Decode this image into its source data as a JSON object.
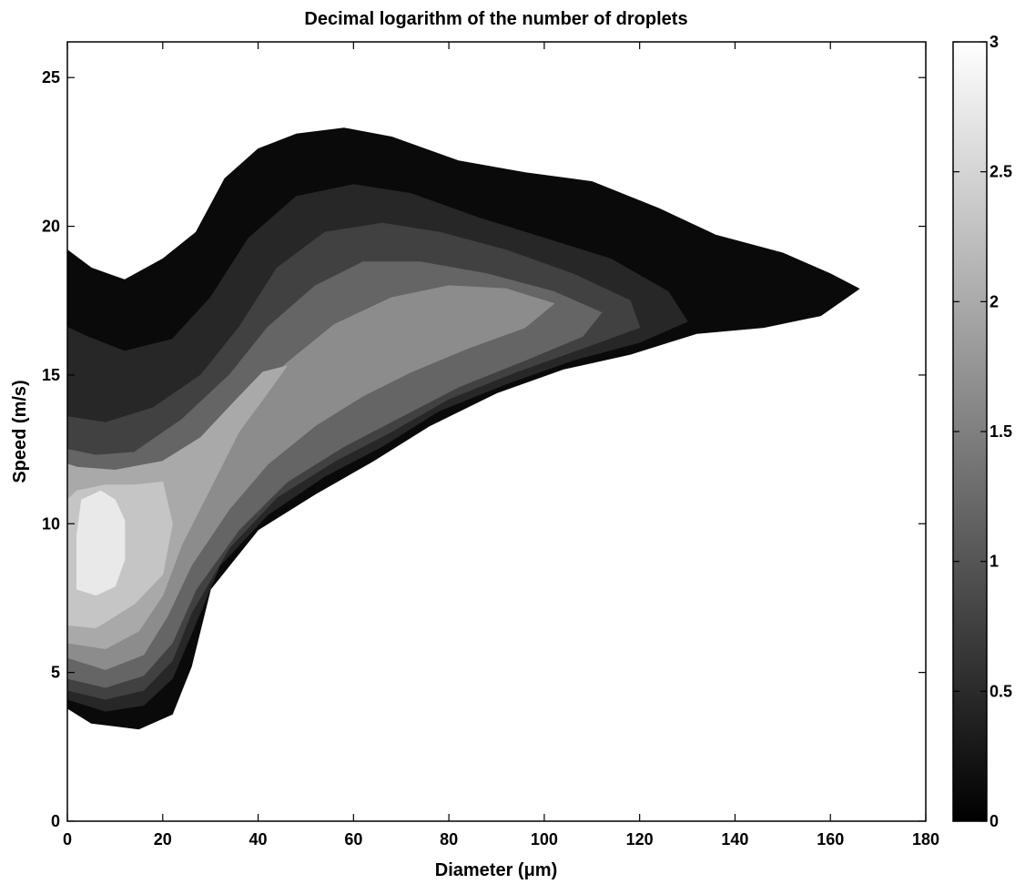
{
  "chart_data": {
    "type": "heatmap",
    "title": "Decimal logarithm of the number of droplets",
    "xlabel": "Diameter (μm)",
    "ylabel": "Speed (m/s)",
    "xlim": [
      0,
      180
    ],
    "ylim": [
      0,
      26.2
    ],
    "xticks": [
      "0",
      "20",
      "40",
      "60",
      "80",
      "100",
      "120",
      "140",
      "160",
      "180"
    ],
    "yticks": [
      "0",
      "5",
      "10",
      "15",
      "20",
      "25"
    ],
    "colormap": "gray",
    "colorbar": {
      "range": [
        0,
        3
      ],
      "ticks": [
        "0",
        "0.5",
        "1",
        "1.5",
        "2",
        "2.5",
        "3"
      ]
    },
    "contour_levels": [
      {
        "level": 0.0,
        "color": "#0a0a0a",
        "polygon": [
          [
            0,
            3.8
          ],
          [
            5,
            3.3
          ],
          [
            15,
            3.1
          ],
          [
            22,
            3.6
          ],
          [
            26,
            5.2
          ],
          [
            30,
            7.8
          ],
          [
            40,
            9.8
          ],
          [
            52,
            11.0
          ],
          [
            64,
            12.1
          ],
          [
            76,
            13.3
          ],
          [
            90,
            14.4
          ],
          [
            104,
            15.2
          ],
          [
            118,
            15.7
          ],
          [
            132,
            16.4
          ],
          [
            146,
            16.6
          ],
          [
            158,
            17.0
          ],
          [
            166,
            17.9
          ],
          [
            160,
            18.4
          ],
          [
            150,
            19.1
          ],
          [
            136,
            19.7
          ],
          [
            124,
            20.6
          ],
          [
            110,
            21.5
          ],
          [
            96,
            21.8
          ],
          [
            82,
            22.2
          ],
          [
            68,
            23.0
          ],
          [
            58,
            23.3
          ],
          [
            48,
            23.1
          ],
          [
            40,
            22.6
          ],
          [
            33,
            21.6
          ],
          [
            27,
            19.8
          ],
          [
            20,
            18.9
          ],
          [
            12,
            18.2
          ],
          [
            5,
            18.6
          ],
          [
            0,
            19.2
          ]
        ]
      },
      {
        "level": 0.5,
        "color": "#272727",
        "polygon": [
          [
            0,
            4.1
          ],
          [
            8,
            3.7
          ],
          [
            16,
            3.9
          ],
          [
            22,
            4.8
          ],
          [
            26,
            6.3
          ],
          [
            32,
            8.6
          ],
          [
            42,
            10.3
          ],
          [
            54,
            11.6
          ],
          [
            66,
            12.6
          ],
          [
            78,
            13.8
          ],
          [
            92,
            14.7
          ],
          [
            106,
            15.5
          ],
          [
            120,
            16.1
          ],
          [
            130,
            16.8
          ],
          [
            126,
            17.8
          ],
          [
            114,
            18.9
          ],
          [
            100,
            19.6
          ],
          [
            86,
            20.3
          ],
          [
            72,
            21.1
          ],
          [
            60,
            21.4
          ],
          [
            48,
            21.0
          ],
          [
            38,
            19.6
          ],
          [
            30,
            17.6
          ],
          [
            22,
            16.2
          ],
          [
            12,
            15.8
          ],
          [
            4,
            16.3
          ],
          [
            0,
            16.6
          ]
        ]
      },
      {
        "level": 0.75,
        "color": "#414141",
        "polygon": [
          [
            0,
            4.4
          ],
          [
            8,
            4.1
          ],
          [
            16,
            4.4
          ],
          [
            22,
            5.4
          ],
          [
            26,
            7.0
          ],
          [
            34,
            9.2
          ],
          [
            44,
            10.9
          ],
          [
            56,
            12.1
          ],
          [
            68,
            13.1
          ],
          [
            80,
            14.2
          ],
          [
            94,
            15.1
          ],
          [
            108,
            15.9
          ],
          [
            120,
            16.6
          ],
          [
            118,
            17.5
          ],
          [
            106,
            18.4
          ],
          [
            92,
            19.2
          ],
          [
            78,
            19.8
          ],
          [
            66,
            20.1
          ],
          [
            54,
            19.8
          ],
          [
            44,
            18.6
          ],
          [
            36,
            16.6
          ],
          [
            28,
            15.0
          ],
          [
            18,
            13.9
          ],
          [
            8,
            13.4
          ],
          [
            0,
            13.6
          ]
        ]
      },
      {
        "level": 1.25,
        "color": "#656565",
        "polygon": [
          [
            0,
            4.8
          ],
          [
            8,
            4.5
          ],
          [
            16,
            4.9
          ],
          [
            22,
            6.0
          ],
          [
            27,
            7.8
          ],
          [
            36,
            9.8
          ],
          [
            46,
            11.4
          ],
          [
            58,
            12.6
          ],
          [
            70,
            13.6
          ],
          [
            82,
            14.6
          ],
          [
            96,
            15.5
          ],
          [
            108,
            16.3
          ],
          [
            112,
            17.1
          ],
          [
            102,
            17.8
          ],
          [
            88,
            18.4
          ],
          [
            74,
            18.8
          ],
          [
            62,
            18.8
          ],
          [
            52,
            18.0
          ],
          [
            42,
            16.6
          ],
          [
            34,
            15.0
          ],
          [
            24,
            13.5
          ],
          [
            14,
            12.4
          ],
          [
            6,
            12.3
          ],
          [
            0,
            12.5
          ]
        ]
      },
      {
        "level": 1.75,
        "color": "#8c8c8c",
        "polygon": [
          [
            0,
            5.5
          ],
          [
            8,
            5.1
          ],
          [
            16,
            5.6
          ],
          [
            21,
            6.9
          ],
          [
            26,
            8.6
          ],
          [
            34,
            10.5
          ],
          [
            42,
            12.0
          ],
          [
            52,
            13.3
          ],
          [
            62,
            14.3
          ],
          [
            72,
            15.1
          ],
          [
            84,
            15.9
          ],
          [
            96,
            16.6
          ],
          [
            102,
            17.4
          ],
          [
            92,
            17.9
          ],
          [
            80,
            18.0
          ],
          [
            68,
            17.6
          ],
          [
            56,
            16.7
          ],
          [
            46,
            15.4
          ],
          [
            38,
            14.2
          ],
          [
            30,
            13.0
          ],
          [
            22,
            11.9
          ],
          [
            14,
            11.5
          ],
          [
            6,
            11.6
          ],
          [
            0,
            12.0
          ]
        ]
      },
      {
        "level": 2.25,
        "color": "#a9a9a9",
        "polygon": [
          [
            0,
            6.0
          ],
          [
            8,
            5.8
          ],
          [
            15,
            6.4
          ],
          [
            20,
            7.6
          ],
          [
            24,
            9.3
          ],
          [
            30,
            11.2
          ],
          [
            36,
            13.1
          ],
          [
            42,
            14.4
          ],
          [
            46,
            15.3
          ],
          [
            41,
            15.1
          ],
          [
            35,
            14.1
          ],
          [
            28,
            12.9
          ],
          [
            20,
            12.1
          ],
          [
            10,
            11.8
          ],
          [
            2,
            11.9
          ],
          [
            0,
            12.0
          ]
        ]
      },
      {
        "level": 2.5,
        "color": "#c5c5c5",
        "polygon": [
          [
            0,
            6.6
          ],
          [
            6,
            6.5
          ],
          [
            14,
            7.3
          ],
          [
            20,
            8.3
          ],
          [
            22,
            10.0
          ],
          [
            20,
            11.4
          ],
          [
            14,
            11.3
          ],
          [
            8,
            11.3
          ],
          [
            2,
            11.1
          ],
          [
            0,
            10.8
          ]
        ]
      },
      {
        "level": 2.75,
        "color": "#e9e9e9",
        "polygon": [
          [
            2,
            7.8
          ],
          [
            6,
            7.6
          ],
          [
            10,
            7.9
          ],
          [
            12,
            8.8
          ],
          [
            12,
            10.1
          ],
          [
            10,
            10.8
          ],
          [
            7,
            11.1
          ],
          [
            3,
            10.8
          ],
          [
            2,
            9.6
          ]
        ]
      }
    ]
  }
}
